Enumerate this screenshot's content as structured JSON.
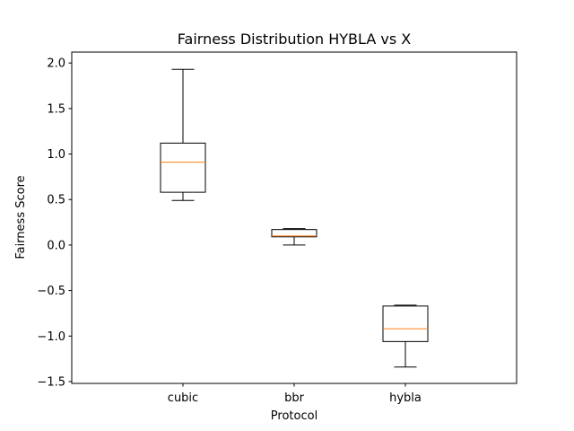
{
  "chart_data": {
    "type": "box",
    "title": "Fairness Distribution HYBLA vs X",
    "xlabel": "Protocol",
    "ylabel": "Fairness Score",
    "ylim": [
      -1.52,
      2.12
    ],
    "yticks": [
      -1.5,
      -1.0,
      -0.5,
      0.0,
      0.5,
      1.0,
      1.5,
      2.0
    ],
    "ytick_labels": [
      "−1.5",
      "−1.0",
      "−0.5",
      "0.0",
      "0.5",
      "1.0",
      "1.5",
      "2.0"
    ],
    "grid": false,
    "categories": [
      "cubic",
      "bbr",
      "hybla"
    ],
    "boxes": [
      {
        "name": "cubic",
        "whisker_low": 0.49,
        "q1": 0.58,
        "median": 0.91,
        "q3": 1.12,
        "whisker_high": 1.93
      },
      {
        "name": "bbr",
        "whisker_low": 0.0,
        "q1": 0.09,
        "median": 0.1,
        "q3": 0.17,
        "whisker_high": 0.18
      },
      {
        "name": "hybla",
        "whisker_low": -1.34,
        "q1": -1.06,
        "median": -0.92,
        "q3": -0.67,
        "whisker_high": -0.66
      }
    ],
    "colors": {
      "box": "#000000",
      "median": "#ff7f0e"
    }
  }
}
